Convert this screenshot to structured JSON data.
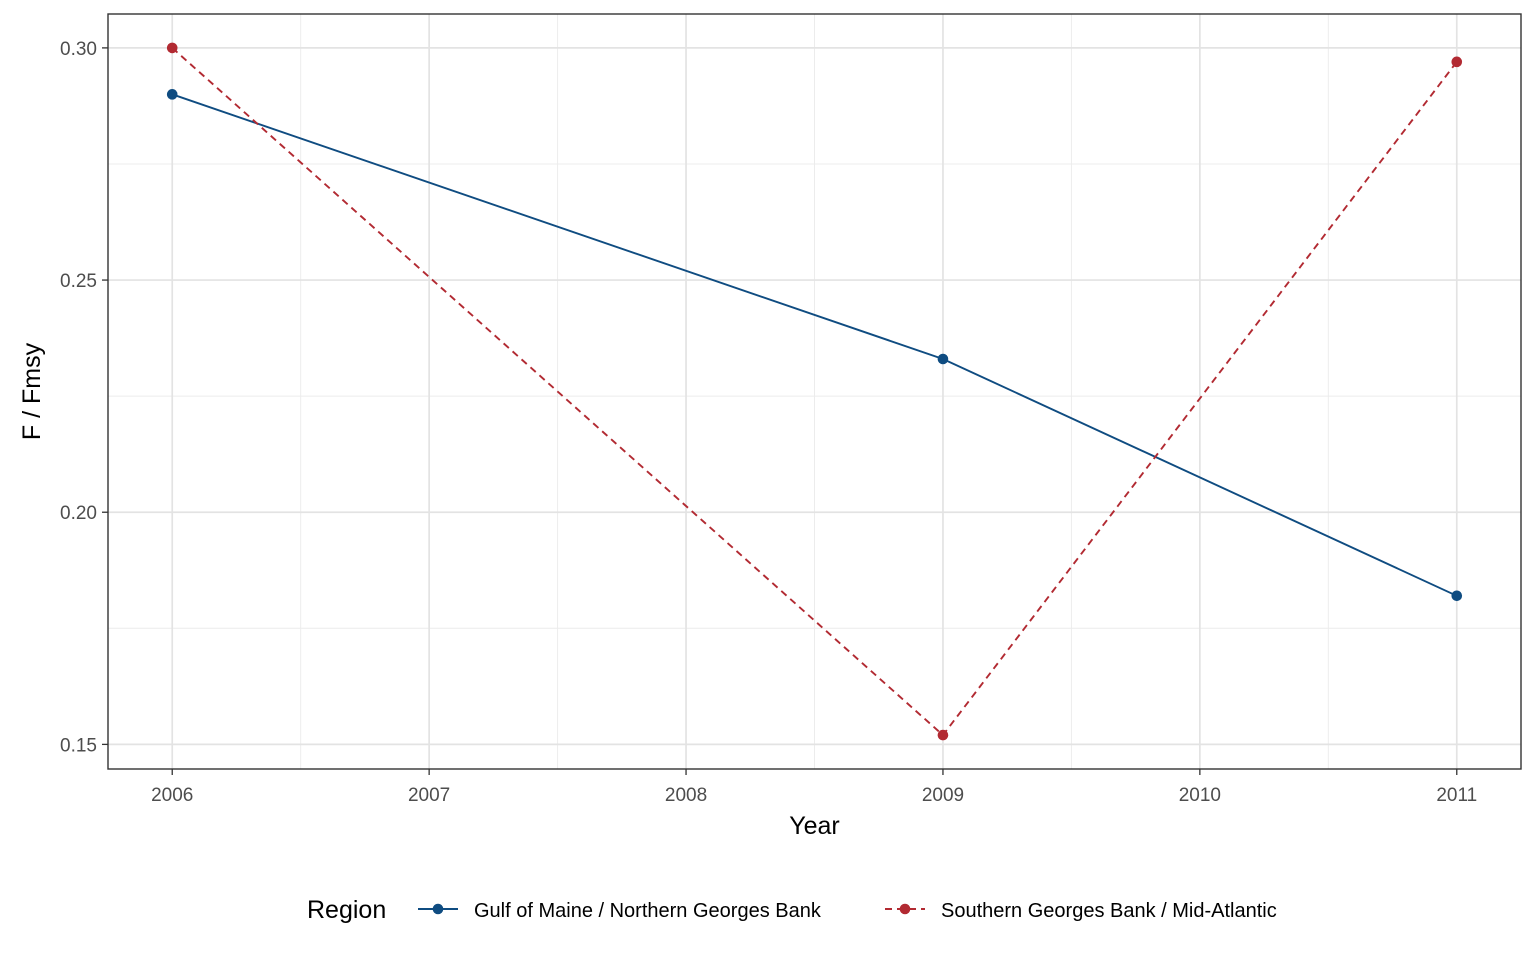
{
  "chart_data": {
    "type": "line",
    "xlabel": "Year",
    "ylabel": "F / Fmsy",
    "xlim": [
      2005.75,
      2011.25
    ],
    "ylim": [
      0.1447,
      0.3073
    ],
    "x_ticks": [
      2006,
      2007,
      2008,
      2009,
      2010,
      2011
    ],
    "x_tick_labels": [
      "2006",
      "2007",
      "2008",
      "2009",
      "2010",
      "2011"
    ],
    "y_ticks": [
      0.15,
      0.2,
      0.25,
      0.3
    ],
    "y_tick_labels": [
      "0.15",
      "0.20",
      "0.25",
      "0.30"
    ],
    "grid": true,
    "legend": {
      "title": "Region",
      "position": "bottom"
    },
    "series": [
      {
        "name": "Gulf of Maine / Northern Georges Bank",
        "color": "#0f4c81",
        "line_style": "solid",
        "x": [
          2006,
          2009,
          2011
        ],
        "y": [
          0.29,
          0.233,
          0.182
        ]
      },
      {
        "name": "Southern Georges Bank / Mid-Atlantic",
        "color": "#b22a32",
        "line_style": "dashed",
        "x": [
          2006,
          2009,
          2011
        ],
        "y": [
          0.3,
          0.152,
          0.297
        ]
      }
    ]
  }
}
